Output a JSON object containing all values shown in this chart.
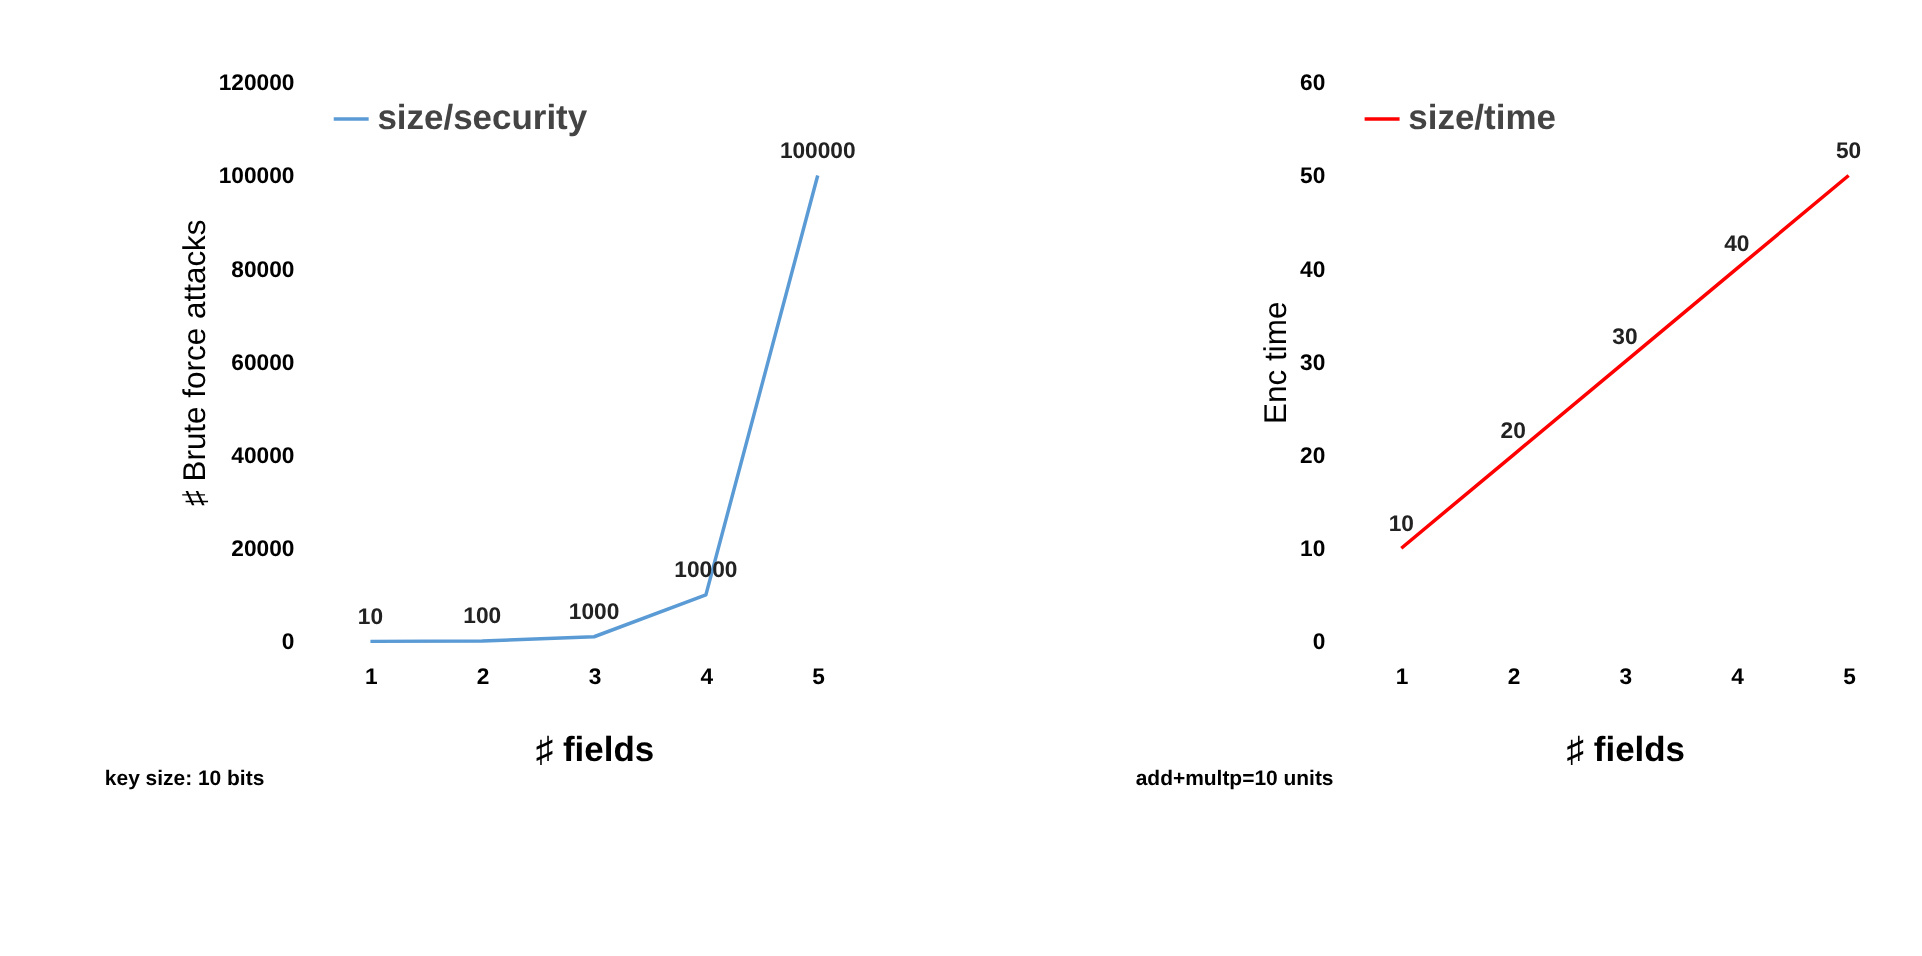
{
  "chart_data": [
    {
      "type": "line",
      "categories": [
        "1",
        "2",
        "3",
        "4",
        "5"
      ],
      "xlabel": "♯ fields",
      "ylabel": "♯ Brute force attacks",
      "ylim": [
        0,
        120000
      ],
      "yticks": [
        0,
        20000,
        40000,
        60000,
        80000,
        100000,
        120000
      ],
      "series": [
        {
          "name": "size/security",
          "color": "#5b9bd5",
          "values": [
            10,
            100,
            1000,
            10000,
            100000
          ]
        }
      ],
      "data_labels": true,
      "legend": "top left",
      "grid": false,
      "annotations": [
        "key size: 10 bits"
      ]
    },
    {
      "type": "line",
      "categories": [
        "1",
        "2",
        "3",
        "4",
        "5"
      ],
      "xlabel": "♯ fields",
      "ylabel": "Enc time",
      "ylim": [
        0,
        60
      ],
      "yticks": [
        0,
        10,
        20,
        30,
        40,
        50,
        60
      ],
      "series": [
        {
          "name": "size/time",
          "color": "#ff0000",
          "values": [
            10,
            20,
            30,
            40,
            50
          ]
        }
      ],
      "data_labels": true,
      "legend": "top left",
      "grid": false,
      "annotations": [
        "add+multp=10 units"
      ]
    }
  ]
}
